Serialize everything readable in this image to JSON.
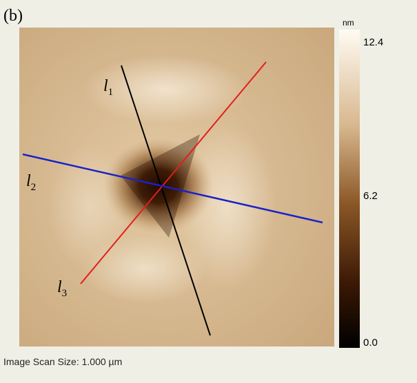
{
  "panel_label": "(b)",
  "colorbar": {
    "unit": "nm",
    "ticks": [
      "12.4",
      "6.2",
      "0.0"
    ]
  },
  "lines": [
    {
      "letter": "l",
      "index": "1"
    },
    {
      "letter": "l",
      "index": "2"
    },
    {
      "letter": "l",
      "index": "3"
    }
  ],
  "caption": "Image Scan Size: 1.000 µm"
}
